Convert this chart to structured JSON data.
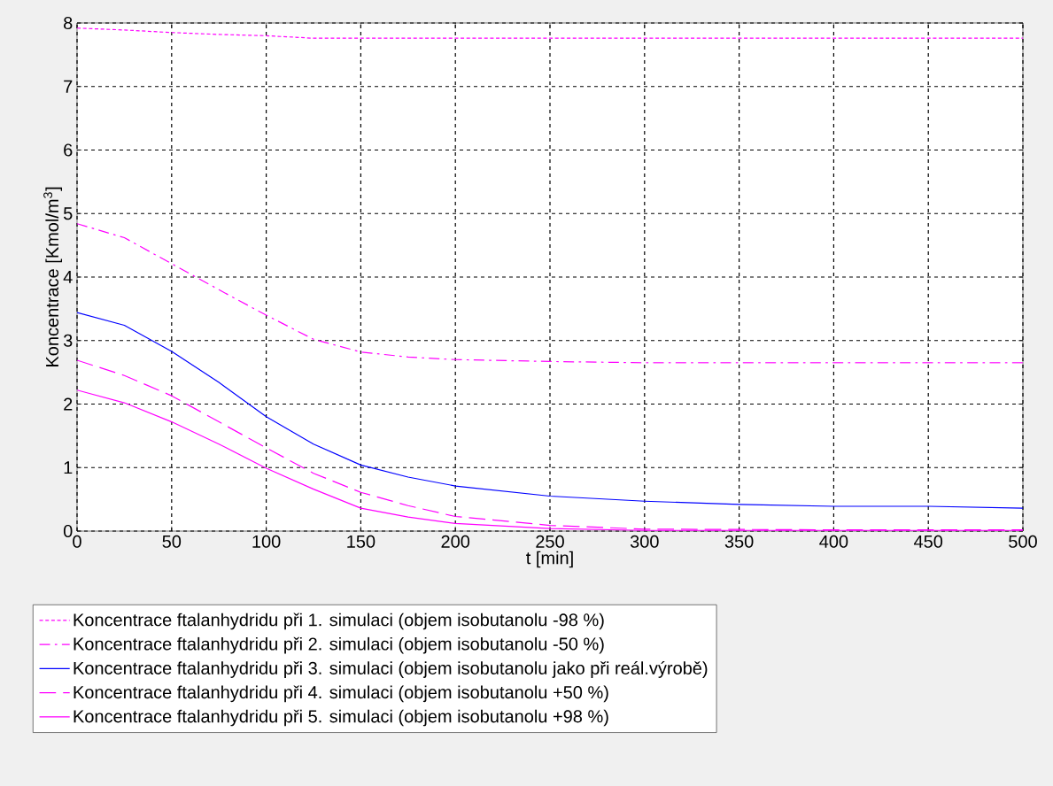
{
  "chart_data": {
    "type": "line",
    "xlabel": "t [min]",
    "ylabel": "Koncentrace [Kmol/m$^{3}$]",
    "xlim": [
      0,
      500
    ],
    "ylim": [
      0,
      8
    ],
    "xticks": [
      0,
      50,
      100,
      150,
      200,
      250,
      300,
      350,
      400,
      450,
      500
    ],
    "yticks": [
      0,
      1,
      2,
      3,
      4,
      5,
      6,
      7,
      8
    ],
    "grid": true,
    "legend": "bottom",
    "marker": "none",
    "series": [
      {
        "name": "Koncentrace ftalanhydridu při 1. simulaci (objem isobutanolu -98 %)",
        "color": "#ff00ff",
        "line_style": "dotted",
        "x": [
          0,
          25,
          50,
          75,
          100,
          125,
          150,
          200,
          300,
          400,
          500
        ],
        "values": [
          7.92,
          7.89,
          7.85,
          7.82,
          7.8,
          7.76,
          7.76,
          7.76,
          7.76,
          7.76,
          7.76
        ]
      },
      {
        "name": "Koncentrace ftalanhydridu při 2. simulaci (objem isobutanolu -50 %)",
        "color": "#ff00ff",
        "line_style": "dashdot",
        "x": [
          0,
          25,
          50,
          75,
          100,
          125,
          150,
          175,
          200,
          250,
          300,
          400,
          500
        ],
        "values": [
          4.84,
          4.62,
          4.21,
          3.8,
          3.4,
          3.02,
          2.82,
          2.74,
          2.7,
          2.67,
          2.65,
          2.65,
          2.65
        ]
      },
      {
        "name": "Koncentrace ftalanhydridu při 3. simulaci (objem isobutanolu jako při reál.výrobě)",
        "color": "#0000ff",
        "line_style": "solid",
        "x": [
          0,
          25,
          50,
          75,
          100,
          125,
          150,
          175,
          200,
          250,
          300,
          350,
          400,
          450,
          500
        ],
        "values": [
          3.44,
          3.24,
          2.83,
          2.34,
          1.8,
          1.37,
          1.04,
          0.85,
          0.71,
          0.55,
          0.47,
          0.42,
          0.39,
          0.39,
          0.36
        ]
      },
      {
        "name": "Koncentrace ftalanhydridu při 4. simulaci (objem isobutanolu +50 %)",
        "color": "#ff00ff",
        "line_style": "dashed",
        "x": [
          0,
          25,
          50,
          75,
          100,
          125,
          150,
          175,
          200,
          250,
          300,
          400,
          500
        ],
        "values": [
          2.69,
          2.45,
          2.13,
          1.72,
          1.31,
          0.91,
          0.61,
          0.4,
          0.23,
          0.09,
          0.03,
          0.02,
          0.02
        ]
      },
      {
        "name": "Koncentrace ftalanhydridu při 5. simulaci (objem isobutanolu +98 %)",
        "color": "#ff00ff",
        "line_style": "solid",
        "x": [
          0,
          25,
          50,
          75,
          100,
          125,
          150,
          175,
          200,
          250,
          300,
          400,
          500
        ],
        "values": [
          2.22,
          2.02,
          1.72,
          1.37,
          0.99,
          0.66,
          0.36,
          0.22,
          0.12,
          0.04,
          0.01,
          0.01,
          0.01
        ]
      }
    ]
  }
}
